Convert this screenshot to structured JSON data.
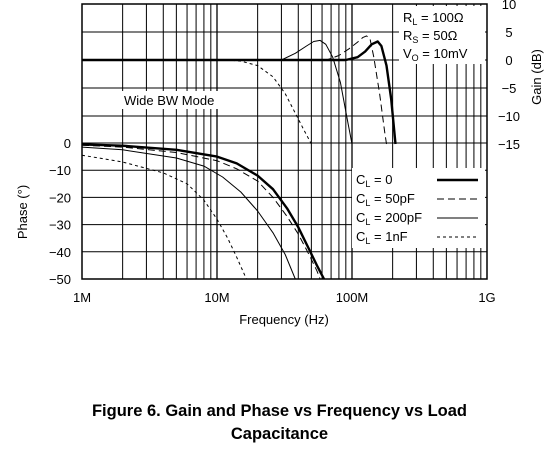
{
  "chart_data": {
    "type": "line",
    "x_scale": "log",
    "x_range_hz": [
      1000000,
      1000000000
    ],
    "x_ticks": [
      {
        "value": 1000000,
        "label": "1M"
      },
      {
        "value": 10000000,
        "label": "10M"
      },
      {
        "value": 100000000,
        "label": "100M"
      },
      {
        "value": 1000000000,
        "label": "1G"
      }
    ],
    "xlabel": "Frequency (Hz)",
    "gain_axis": {
      "label": "Gain (dB)",
      "range": [
        -15,
        10
      ],
      "ticks": [
        {
          "value": 10,
          "label": "10"
        },
        {
          "value": 5,
          "label": "5"
        },
        {
          "value": 0,
          "label": "0"
        },
        {
          "value": -5,
          "label": "−5"
        },
        {
          "value": -10,
          "label": "−10"
        },
        {
          "value": -15,
          "label": "−15"
        }
      ]
    },
    "phase_axis": {
      "label": "Phase (°)",
      "range": [
        -50,
        0
      ],
      "ticks": [
        {
          "value": 0,
          "label": "0"
        },
        {
          "value": -10,
          "label": "−10"
        },
        {
          "value": -20,
          "label": "−20"
        },
        {
          "value": -30,
          "label": "−30"
        },
        {
          "value": -40,
          "label": "−40"
        },
        {
          "value": -50,
          "label": "−50"
        }
      ]
    },
    "grid": true,
    "mode_label": "Wide BW Mode",
    "conditions": [
      {
        "sym": "R",
        "sub": "L",
        "rest": " = 100Ω"
      },
      {
        "sym": "R",
        "sub": "S",
        "rest": " = 50Ω"
      },
      {
        "sym": "V",
        "sub": "O",
        "rest": " = 10mV"
      }
    ],
    "legend": {
      "position": "bottom-right",
      "entries": [
        {
          "sym": "C",
          "sub": "L",
          "rest": " = 0",
          "style": "thick"
        },
        {
          "sym": "C",
          "sub": "L",
          "rest": " = 50pF",
          "style": "dash"
        },
        {
          "sym": "C",
          "sub": "L",
          "rest": " = 200pF",
          "style": "thin"
        },
        {
          "sym": "C",
          "sub": "L",
          "rest": " = 1nF",
          "style": "shortdash"
        }
      ]
    },
    "series": [
      {
        "style": "thick",
        "kind": "gain",
        "points": [
          [
            1000000,
            0
          ],
          [
            90000000,
            0
          ],
          [
            110000000,
            0.5
          ],
          [
            125000000,
            1.5
          ],
          [
            140000000,
            2.8
          ],
          [
            155000000,
            3.3
          ],
          [
            165000000,
            2.5
          ],
          [
            180000000,
            -1
          ],
          [
            195000000,
            -7
          ],
          [
            210000000,
            -15
          ]
        ]
      },
      {
        "style": "dash",
        "kind": "gain",
        "points": [
          [
            1000000,
            0
          ],
          [
            65000000,
            0
          ],
          [
            80000000,
            0.8
          ],
          [
            95000000,
            2
          ],
          [
            110000000,
            3.2
          ],
          [
            120000000,
            4
          ],
          [
            128000000,
            4.3
          ],
          [
            136000000,
            3.8
          ],
          [
            145000000,
            0.5
          ],
          [
            160000000,
            -6
          ],
          [
            175000000,
            -13
          ],
          [
            180000000,
            -15
          ]
        ]
      },
      {
        "style": "thin",
        "kind": "gain",
        "points": [
          [
            1000000,
            0
          ],
          [
            30000000,
            0
          ],
          [
            38000000,
            1.2
          ],
          [
            46000000,
            2.5
          ],
          [
            52000000,
            3.3
          ],
          [
            58000000,
            3.5
          ],
          [
            64000000,
            2.8
          ],
          [
            72000000,
            0.5
          ],
          [
            82000000,
            -4
          ],
          [
            93000000,
            -11
          ],
          [
            100000000,
            -15
          ]
        ]
      },
      {
        "style": "shortdash",
        "kind": "gain",
        "points": [
          [
            1000000,
            0
          ],
          [
            12000000,
            0
          ],
          [
            15000000,
            -0.2
          ],
          [
            20000000,
            -1
          ],
          [
            26000000,
            -3
          ],
          [
            32000000,
            -6
          ],
          [
            38000000,
            -9.5
          ],
          [
            44000000,
            -12.5
          ],
          [
            50000000,
            -15
          ]
        ]
      },
      {
        "style": "thick",
        "kind": "phase",
        "points": [
          [
            1000000,
            -0.5
          ],
          [
            2000000,
            -1
          ],
          [
            5000000,
            -2.5
          ],
          [
            10000000,
            -5
          ],
          [
            14000000,
            -7.5
          ],
          [
            20000000,
            -12
          ],
          [
            26000000,
            -17
          ],
          [
            33000000,
            -24
          ],
          [
            40000000,
            -31
          ],
          [
            48000000,
            -39
          ],
          [
            55000000,
            -45
          ],
          [
            62000000,
            -50
          ]
        ]
      },
      {
        "style": "dash",
        "kind": "phase",
        "points": [
          [
            1000000,
            -0.8
          ],
          [
            2000000,
            -1.5
          ],
          [
            5000000,
            -3.5
          ],
          [
            10000000,
            -6.5
          ],
          [
            14000000,
            -9.5
          ],
          [
            20000000,
            -14
          ],
          [
            26000000,
            -20
          ],
          [
            33000000,
            -27
          ],
          [
            40000000,
            -33.5
          ],
          [
            48000000,
            -41
          ],
          [
            55000000,
            -47
          ],
          [
            58000000,
            -50
          ]
        ]
      },
      {
        "style": "thin",
        "kind": "phase",
        "points": [
          [
            1000000,
            -1.5
          ],
          [
            2000000,
            -2.5
          ],
          [
            5000000,
            -5.5
          ],
          [
            8000000,
            -8.5
          ],
          [
            11000000,
            -12.5
          ],
          [
            15000000,
            -18
          ],
          [
            20000000,
            -25
          ],
          [
            26000000,
            -33
          ],
          [
            32000000,
            -41
          ],
          [
            38000000,
            -50
          ]
        ]
      },
      {
        "style": "shortdash",
        "kind": "phase",
        "points": [
          [
            1000000,
            -4.5
          ],
          [
            2000000,
            -7
          ],
          [
            4000000,
            -11
          ],
          [
            6000000,
            -15
          ],
          [
            8000000,
            -21
          ],
          [
            10000000,
            -28
          ],
          [
            12000000,
            -35
          ],
          [
            14000000,
            -42
          ],
          [
            16500000,
            -50
          ]
        ]
      }
    ]
  },
  "caption": {
    "line1": "Figure 6. Gain and Phase vs Frequency vs Load",
    "line2": "Capacitance"
  }
}
